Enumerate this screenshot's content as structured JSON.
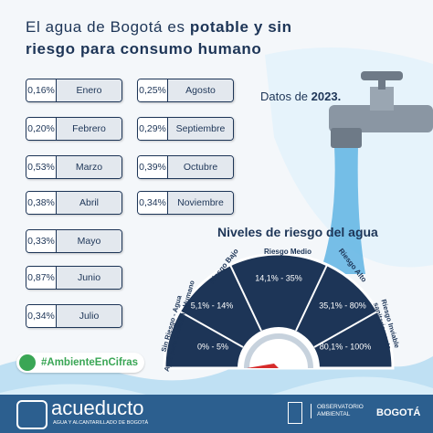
{
  "header": {
    "title_regular": "El agua de Bogotá es ",
    "title_bold": "potable y sin riesgo para consumo humano"
  },
  "months": [
    {
      "value": "0,16%",
      "month": "Enero"
    },
    {
      "value": "0,20%",
      "month": "Febrero"
    },
    {
      "value": "0,53%",
      "month": "Marzo"
    },
    {
      "value": "0,38%",
      "month": "Abril"
    },
    {
      "value": "0,33%",
      "month": "Mayo"
    },
    {
      "value": "0,87%",
      "month": "Junio"
    },
    {
      "value": "0,34%",
      "month": "Julio"
    },
    {
      "value": "0,25%",
      "month": "Agosto"
    },
    {
      "value": "0,29%",
      "month": "Septiembre"
    },
    {
      "value": "0,39%",
      "month": "Octubre"
    },
    {
      "value": "0,34%",
      "month": "Noviembre"
    }
  ],
  "note": {
    "text": "Datos de ",
    "year": "2023."
  },
  "gauge": {
    "title": "Niveles de riesgo del agua",
    "levels": [
      {
        "name": "Sin Riesgo - Agua Apta para Consumo Humano",
        "range": "0% - 5%"
      },
      {
        "name": "Riesgo Bajo",
        "range": "5,1% - 14%"
      },
      {
        "name": "Riesgo Medio",
        "range": "14,1% - 35%"
      },
      {
        "name": "Riesgo Alto",
        "range": "35,1% - 80%"
      },
      {
        "name": "Riesgo Inviable sanitariamente",
        "range": "80,1% - 100%"
      }
    ]
  },
  "hashtag": "#AmbienteEnCifras",
  "footer": {
    "brand": "acueducto",
    "brand_sub": "AGUA Y ALCANTARILLADO DE BOGOTÁ",
    "observatorio": "OBSERVATORIO AMBIENTAL",
    "city": "BOGOTÁ"
  }
}
